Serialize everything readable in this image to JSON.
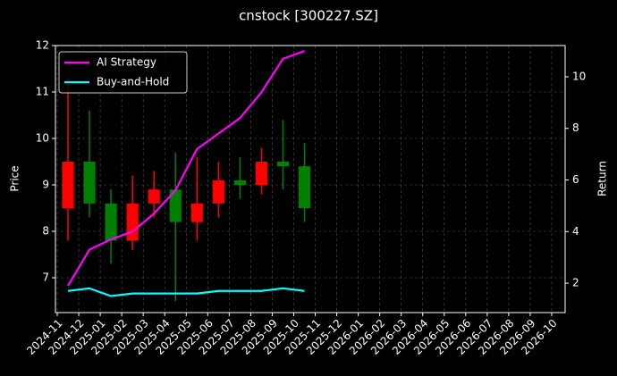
{
  "chart_data": {
    "type": "candlestick",
    "title": "cnstock [300227.SZ]",
    "ylabel": "Price",
    "y2label": "Return",
    "x": [
      "2024-11",
      "2024-12",
      "2025-01",
      "2025-02",
      "2025-03",
      "2025-04",
      "2025-05",
      "2025-06",
      "2025-07",
      "2025-08",
      "2025-09",
      "2025-10"
    ],
    "open": [
      8.5,
      9.5,
      8.6,
      7.8,
      8.6,
      8.9,
      8.2,
      8.6,
      9.1,
      9.0,
      9.5,
      9.4
    ],
    "high": [
      11.3,
      10.6,
      8.9,
      9.2,
      9.3,
      9.7,
      9.6,
      9.5,
      9.6,
      9.8,
      10.4,
      9.9
    ],
    "low": [
      7.8,
      8.3,
      7.3,
      7.6,
      8.3,
      6.5,
      7.8,
      8.3,
      8.7,
      8.8,
      8.9,
      8.2
    ],
    "close": [
      9.5,
      8.6,
      7.8,
      8.6,
      8.9,
      8.2,
      8.6,
      9.1,
      9.0,
      9.5,
      9.4,
      8.5
    ],
    "up_color": "#ff0000",
    "down_color": "#008000",
    "series": [
      {
        "name": "AI Strategy",
        "color": "#ff00ff",
        "axis": "y2",
        "values": [
          1.9,
          3.3,
          3.7,
          4.0,
          4.7,
          5.6,
          7.2,
          7.8,
          8.4,
          9.4,
          10.7,
          11.0
        ]
      },
      {
        "name": "Buy-and-Hold",
        "color": "#00ffff",
        "axis": "y2",
        "values": [
          1.7,
          1.8,
          1.5,
          1.6,
          1.6,
          1.6,
          1.6,
          1.7,
          1.7,
          1.7,
          1.8,
          1.7
        ]
      }
    ],
    "xlim": [
      "2024-11",
      "2026-10"
    ],
    "xticks": [
      "2024-11",
      "2024-12",
      "2025-01",
      "2025-02",
      "2025-03",
      "2025-04",
      "2025-05",
      "2025-06",
      "2025-07",
      "2025-08",
      "2025-09",
      "2025-10",
      "2025-11",
      "2025-12",
      "2026-01",
      "2026-02",
      "2026-03",
      "2026-04",
      "2026-05",
      "2026-06",
      "2026-07",
      "2026-08",
      "2026-09",
      "2026-10"
    ],
    "ylim": [
      6.25,
      12
    ],
    "yticks": [
      7,
      8,
      9,
      10,
      11,
      12
    ],
    "y2lim": [
      0.86,
      11.21
    ],
    "y2ticks": [
      2,
      4,
      6,
      8,
      10
    ],
    "grid": true,
    "legend": "upper left"
  }
}
